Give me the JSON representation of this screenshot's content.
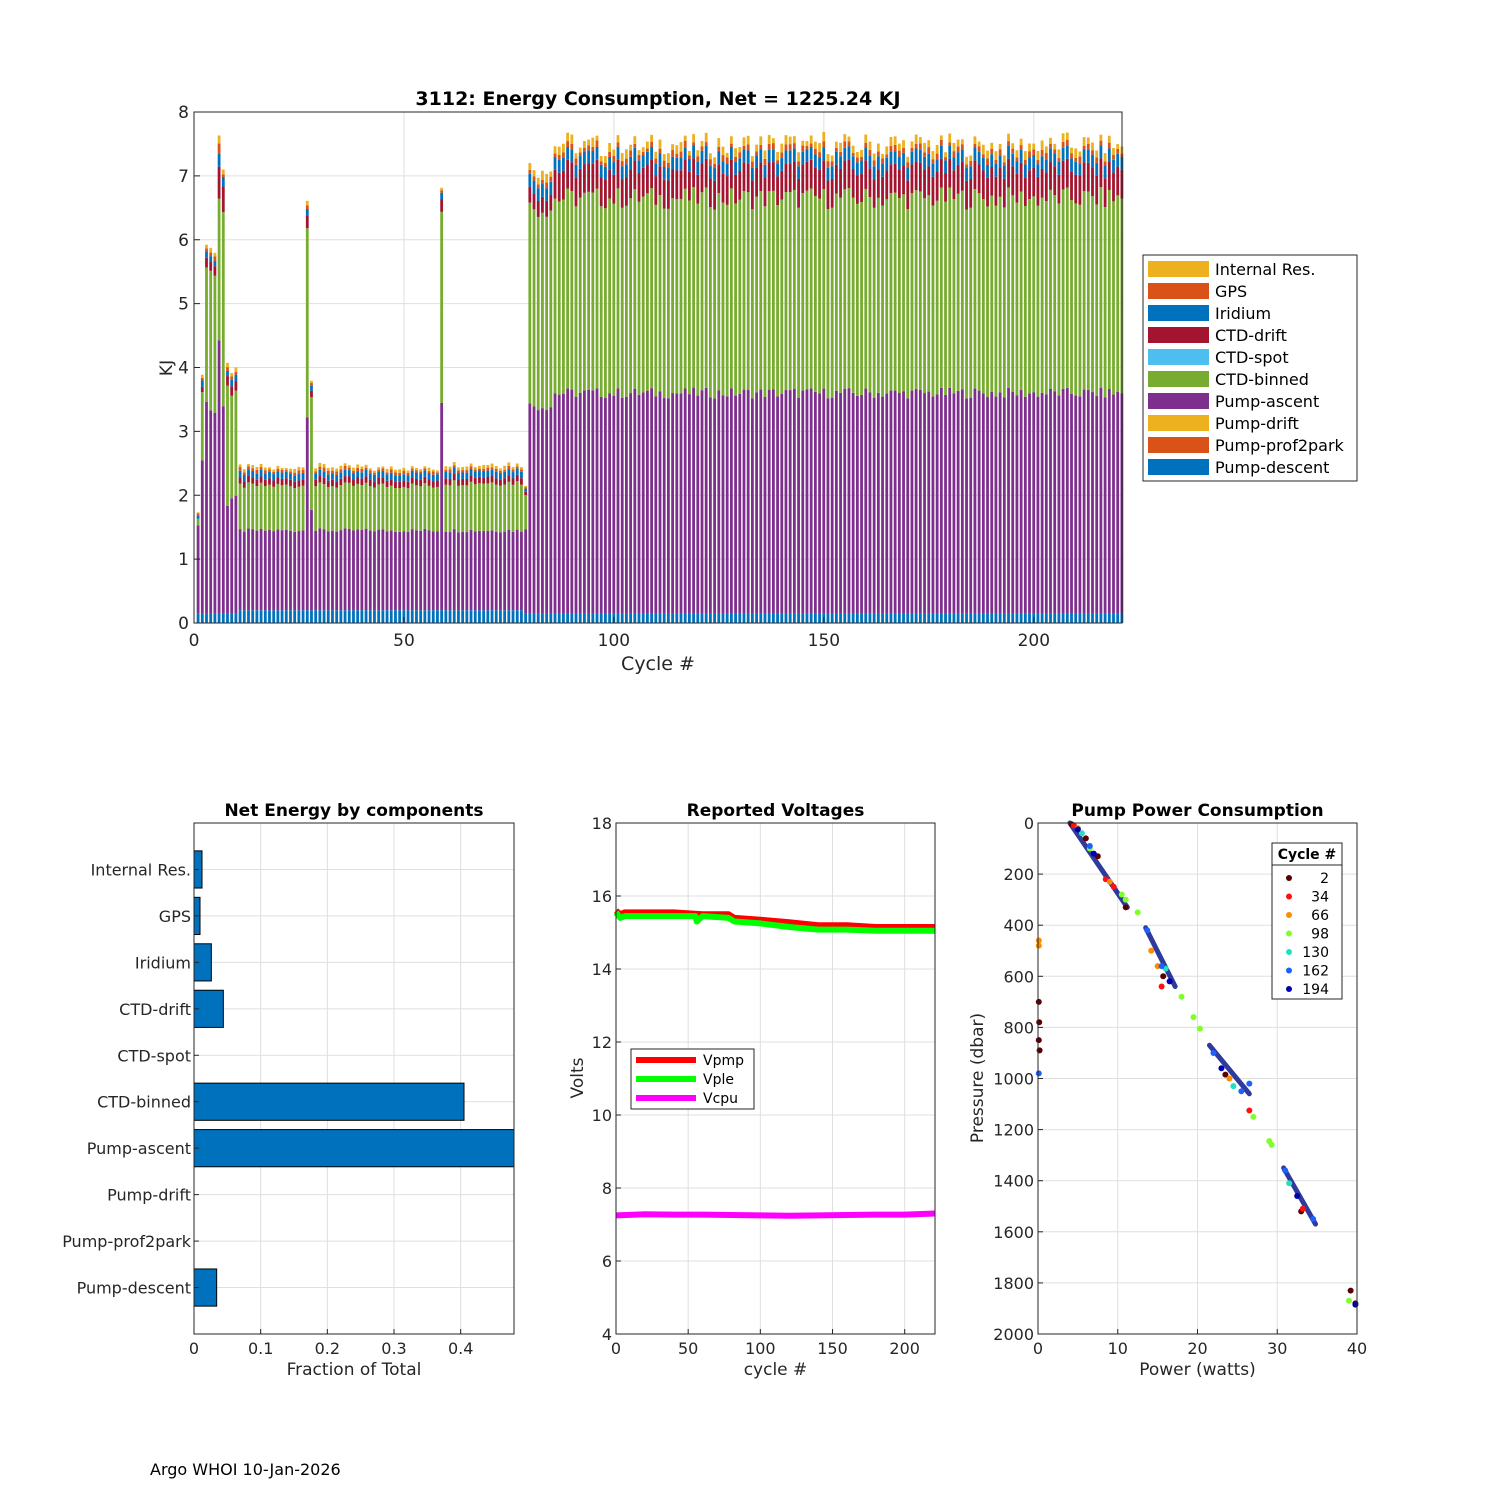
{
  "footer": "Argo WHOI 10-Jan-2026",
  "chart_data": [
    {
      "id": "energy",
      "type": "bar",
      "stacked": true,
      "title": "3112: Energy Consumption,  Net = 1225.24 KJ",
      "xlabel": "Cycle #",
      "ylabel": "KJ",
      "xlim": [
        0,
        221
      ],
      "ylim": [
        0,
        8
      ],
      "xticks": [
        0,
        50,
        100,
        150,
        200
      ],
      "yticks": [
        0,
        1,
        2,
        3,
        4,
        5,
        6,
        7,
        8
      ],
      "grid": true,
      "legend_position": "right",
      "components": [
        {
          "name": "Internal Res.",
          "color": "#EDB120"
        },
        {
          "name": "GPS",
          "color": "#D95319"
        },
        {
          "name": "Iridium",
          "color": "#0072BD"
        },
        {
          "name": "CTD-drift",
          "color": "#A2142F"
        },
        {
          "name": "CTD-spot",
          "color": "#4DBEEE"
        },
        {
          "name": "CTD-binned",
          "color": "#77AC30"
        },
        {
          "name": "Pump-ascent",
          "color": "#7E2F8E"
        },
        {
          "name": "Pump-drift",
          "color": "#EDB120"
        },
        {
          "name": "Pump-prof2park",
          "color": "#D95319"
        },
        {
          "name": "Pump-descent",
          "color": "#0072BD"
        }
      ],
      "segments": [
        {
          "from": 1,
          "to": 1,
          "descent": 0.15,
          "ascent": 1.35,
          "binned": 0.1,
          "drift": 0.0,
          "iridium": 0.05,
          "gps": 0.03,
          "internal": 0.02
        },
        {
          "from": 2,
          "to": 2,
          "descent": 0.15,
          "ascent": 2.45,
          "binned": 1.1,
          "drift": 0.08,
          "iridium": 0.1,
          "gps": 0.05,
          "internal": 0.05
        },
        {
          "from": 3,
          "to": 3,
          "descent": 0.15,
          "ascent": 3.3,
          "binned": 2.1,
          "drift": 0.15,
          "iridium": 0.1,
          "gps": 0.05,
          "internal": 0.05
        },
        {
          "from": 4,
          "to": 4,
          "descent": 0.15,
          "ascent": 3.2,
          "binned": 2.2,
          "drift": 0.15,
          "iridium": 0.08,
          "gps": 0.05,
          "internal": 0.05
        },
        {
          "from": 5,
          "to": 5,
          "descent": 0.15,
          "ascent": 3.15,
          "binned": 2.15,
          "drift": 0.15,
          "iridium": 0.08,
          "gps": 0.05,
          "internal": 0.04
        },
        {
          "from": 6,
          "to": 6,
          "descent": 0.15,
          "ascent": 4.25,
          "binned": 2.2,
          "drift": 0.5,
          "iridium": 0.2,
          "gps": 0.12,
          "internal": 0.15
        },
        {
          "from": 7,
          "to": 7,
          "descent": 0.15,
          "ascent": 3.3,
          "binned": 3.1,
          "drift": 0.4,
          "iridium": 0.15,
          "gps": 0.05,
          "internal": 0.05
        },
        {
          "from": 8,
          "to": 8,
          "descent": 0.15,
          "ascent": 1.7,
          "binned": 1.9,
          "drift": 0.15,
          "iridium": 0.08,
          "gps": 0.04,
          "internal": 0.05
        },
        {
          "from": 9,
          "to": 10,
          "descent": 0.15,
          "ascent": 1.8,
          "binned": 1.6,
          "drift": 0.15,
          "iridium": 0.1,
          "gps": 0.04,
          "internal": 0.05
        },
        {
          "from": 11,
          "to": 26,
          "descent": 0.2,
          "ascent": 1.25,
          "binned": 0.7,
          "drift": 0.1,
          "iridium": 0.1,
          "gps": 0.04,
          "internal": 0.04
        },
        {
          "from": 27,
          "to": 27,
          "descent": 0.2,
          "ascent": 3.1,
          "binned": 3.05,
          "drift": 0.2,
          "iridium": 0.1,
          "gps": 0.06,
          "internal": 0.07
        },
        {
          "from": 28,
          "to": 28,
          "descent": 0.2,
          "ascent": 1.6,
          "binned": 1.8,
          "drift": 0.1,
          "iridium": 0.08,
          "gps": 0.04,
          "internal": 0.04
        },
        {
          "from": 29,
          "to": 58,
          "descent": 0.2,
          "ascent": 1.25,
          "binned": 0.7,
          "drift": 0.1,
          "iridium": 0.1,
          "gps": 0.04,
          "internal": 0.04
        },
        {
          "from": 59,
          "to": 59,
          "descent": 0.2,
          "ascent": 3.3,
          "binned": 3.05,
          "drift": 0.2,
          "iridium": 0.1,
          "gps": 0.05,
          "internal": 0.05
        },
        {
          "from": 60,
          "to": 78,
          "descent": 0.2,
          "ascent": 1.25,
          "binned": 0.75,
          "drift": 0.1,
          "iridium": 0.1,
          "gps": 0.04,
          "internal": 0.05
        },
        {
          "from": 79,
          "to": 79,
          "descent": 0.15,
          "ascent": 1.35,
          "binned": 0.55,
          "drift": 0.05,
          "iridium": 0.05,
          "gps": 0.03,
          "internal": 0.02
        },
        {
          "from": 80,
          "to": 85,
          "descent": 0.15,
          "ascent": 3.25,
          "binned": 3.1,
          "drift": 0.25,
          "iridium": 0.2,
          "gps": 0.06,
          "internal": 0.1
        },
        {
          "from": 86,
          "to": 221,
          "descent": 0.15,
          "ascent": 3.45,
          "binned": 3.05,
          "drift": 0.45,
          "iridium": 0.2,
          "gps": 0.07,
          "internal": 0.1
        }
      ]
    },
    {
      "id": "net",
      "type": "bar",
      "orientation": "horizontal",
      "title": "Net Energy by components",
      "xlabel": "Fraction of Total",
      "xlim": [
        0,
        0.48
      ],
      "xticks": [
        0,
        0.1,
        0.2,
        0.3,
        0.4
      ],
      "xtick_labels": [
        "0",
        "0.1",
        "0.2",
        "0.3",
        "0.4"
      ],
      "categories": [
        "Internal Res.",
        "GPS",
        "Iridium",
        "CTD-drift",
        "CTD-spot",
        "CTD-binned",
        "Pump-ascent",
        "Pump-drift",
        "Pump-prof2park",
        "Pump-descent"
      ],
      "values": [
        0.012,
        0.009,
        0.026,
        0.044,
        0.0,
        0.405,
        0.48,
        0.0,
        0.0,
        0.034
      ],
      "color": "#0072BD",
      "grid": true
    },
    {
      "id": "volts",
      "type": "scatter",
      "title": "Reported Voltages",
      "xlabel": "cycle #",
      "ylabel": "Volts",
      "xlim": [
        0,
        221
      ],
      "ylim": [
        4,
        18
      ],
      "xticks": [
        0,
        50,
        100,
        150,
        200
      ],
      "yticks": [
        4,
        6,
        8,
        10,
        12,
        14,
        16,
        18
      ],
      "grid": true,
      "legend_position": "left",
      "series": [
        {
          "name": "Vpmp",
          "color": "#FF0000",
          "x": [
            0,
            3,
            6,
            20,
            40,
            60,
            78,
            82,
            100,
            120,
            140,
            160,
            180,
            200,
            221
          ],
          "y": [
            15.6,
            15.5,
            15.55,
            15.55,
            15.55,
            15.5,
            15.5,
            15.4,
            15.35,
            15.28,
            15.2,
            15.2,
            15.15,
            15.15,
            15.15
          ]
        },
        {
          "name": "Vple",
          "color": "#00FF00",
          "x": [
            0,
            3,
            6,
            20,
            40,
            55,
            56,
            60,
            78,
            82,
            100,
            120,
            140,
            160,
            180,
            200,
            221
          ],
          "y": [
            15.55,
            15.4,
            15.45,
            15.45,
            15.45,
            15.45,
            15.3,
            15.45,
            15.4,
            15.3,
            15.25,
            15.15,
            15.08,
            15.08,
            15.05,
            15.05,
            15.05
          ]
        },
        {
          "name": "Vcpu",
          "color": "#FF00FF",
          "x": [
            0,
            20,
            40,
            60,
            80,
            100,
            120,
            140,
            160,
            180,
            200,
            221
          ],
          "y": [
            7.25,
            7.28,
            7.27,
            7.27,
            7.26,
            7.25,
            7.24,
            7.25,
            7.26,
            7.27,
            7.27,
            7.3
          ]
        }
      ]
    },
    {
      "id": "pump",
      "type": "scatter",
      "title": "Pump Power Consumption",
      "xlabel": "Power (watts)",
      "ylabel": "Pressure (dbar)",
      "xlim": [
        0,
        40
      ],
      "ylim": [
        0,
        2000
      ],
      "y_reversed": true,
      "xticks": [
        0,
        10,
        20,
        30,
        40
      ],
      "yticks": [
        0,
        200,
        400,
        600,
        800,
        1000,
        1200,
        1400,
        1600,
        1800,
        2000
      ],
      "grid": true,
      "legend_title": "Cycle #",
      "legend_position": "top-right",
      "series": [
        {
          "name": "2",
          "color": "#5A0000",
          "points": [
            [
              4.2,
              5
            ],
            [
              7.5,
              130
            ],
            [
              0.1,
              700
            ],
            [
              0.15,
              780
            ],
            [
              0.1,
              850
            ],
            [
              0.2,
              890
            ],
            [
              15.7,
              600
            ],
            [
              23.5,
              985
            ],
            [
              33,
              1520
            ],
            [
              39.2,
              1830
            ],
            [
              39.8,
              1880
            ],
            [
              11,
              330
            ],
            [
              6,
              60
            ]
          ]
        },
        {
          "name": "34",
          "color": "#FF1010",
          "points": [
            [
              4.5,
              10
            ],
            [
              8.5,
              220
            ],
            [
              15.5,
              640
            ],
            [
              26.5,
              1125
            ],
            [
              33.2,
              1510
            ],
            [
              9.5,
              250
            ]
          ]
        },
        {
          "name": "66",
          "color": "#FF8C00",
          "points": [
            [
              0.1,
              460
            ],
            [
              0.1,
              480
            ],
            [
              5,
              20
            ],
            [
              9,
              230
            ],
            [
              15,
              560
            ],
            [
              24,
              1000
            ],
            [
              14.2,
              500
            ]
          ]
        },
        {
          "name": "98",
          "color": "#7FFF2A",
          "points": [
            [
              10.5,
              280
            ],
            [
              11,
              300
            ],
            [
              18,
              680
            ],
            [
              19.5,
              760
            ],
            [
              20.3,
              805
            ],
            [
              27,
              1150
            ],
            [
              29,
              1245
            ],
            [
              29.3,
              1260
            ],
            [
              39,
              1870
            ],
            [
              6.5,
              100
            ],
            [
              12.5,
              350
            ]
          ]
        },
        {
          "name": "130",
          "color": "#20E0C0",
          "points": [
            [
              5.5,
              40
            ],
            [
              16,
              570
            ],
            [
              24.5,
              1030
            ],
            [
              31.5,
              1410
            ]
          ]
        },
        {
          "name": "162",
          "color": "#1E60FF",
          "points": [
            [
              6.5,
              90
            ],
            [
              13.7,
              420
            ],
            [
              15.5,
              560
            ],
            [
              22,
              900
            ],
            [
              25.5,
              1050
            ],
            [
              31,
              1360
            ],
            [
              34.5,
              1550
            ],
            [
              0.1,
              980
            ],
            [
              26.5,
              1020
            ]
          ]
        },
        {
          "name": "194",
          "color": "#0000B0",
          "points": [
            [
              5,
              25
            ],
            [
              7,
              120
            ],
            [
              16.5,
              620
            ],
            [
              23,
              960
            ],
            [
              32.5,
              1460
            ],
            [
              39.8,
              1885
            ]
          ]
        }
      ],
      "trend_segments": [
        {
          "from": [
            4.0,
            0
          ],
          "to": [
            11.2,
            330
          ]
        },
        {
          "from": [
            13.5,
            410
          ],
          "to": [
            17.2,
            640
          ]
        },
        {
          "from": [
            21.5,
            870
          ],
          "to": [
            26.5,
            1060
          ]
        },
        {
          "from": [
            30.8,
            1350
          ],
          "to": [
            34.8,
            1570
          ]
        }
      ],
      "trend_color": "#0a1a8c"
    }
  ]
}
